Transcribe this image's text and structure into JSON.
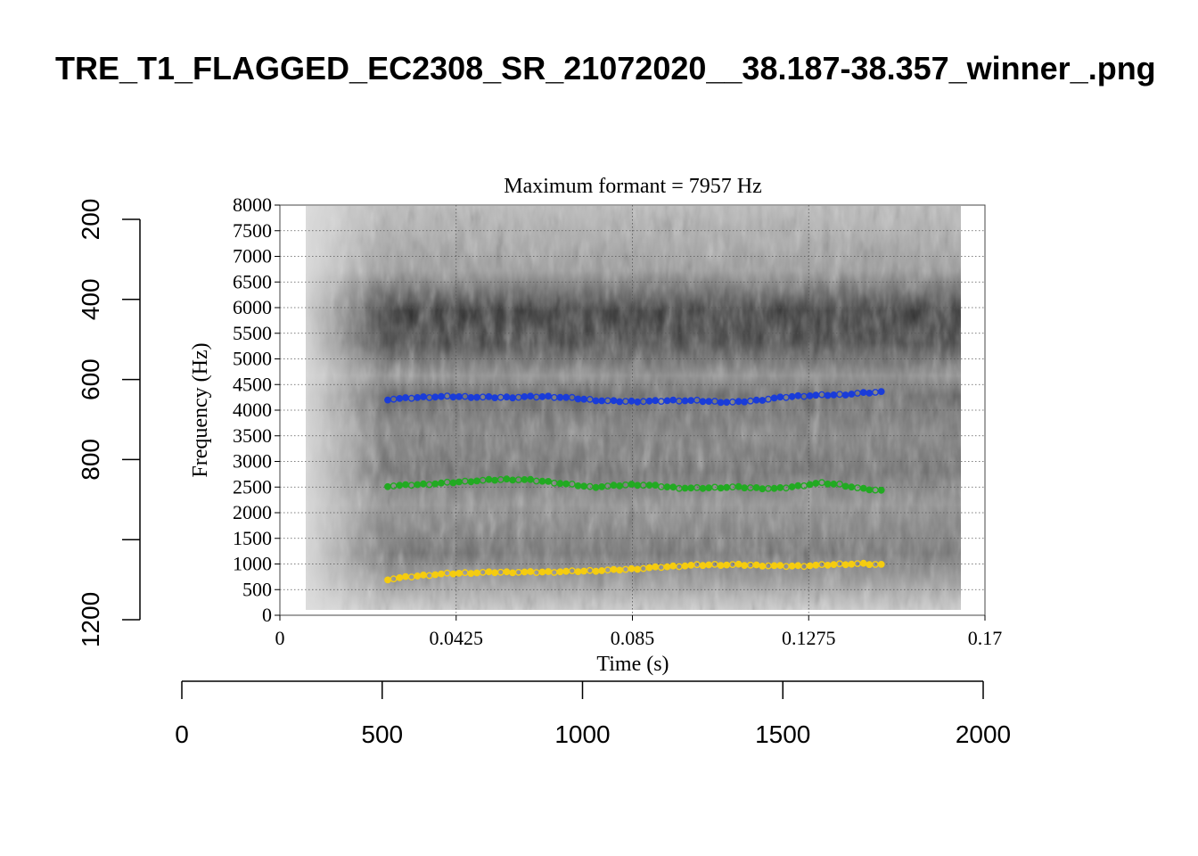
{
  "title": "TRE_T1_FLAGGED_EC2308_SR_21072020__38.187-38.357_winner_.png",
  "outer_axes": {
    "left": {
      "ticks": [
        200,
        400,
        600,
        800,
        1000,
        1200
      ],
      "labels": [
        "200",
        "400",
        "600",
        "800",
        "",
        "1200"
      ],
      "range": [
        200,
        1200
      ],
      "reversed": true
    },
    "bottom": {
      "ticks": [
        0,
        500,
        1000,
        1500,
        2000
      ],
      "labels": [
        "0",
        "500",
        "1000",
        "1500",
        "2000"
      ],
      "range": [
        0,
        2000
      ]
    }
  },
  "chart_data": {
    "type": "scatter",
    "title": "Maximum formant  =  7957 Hz",
    "xlabel": "Time (s)",
    "ylabel": "Frequency (Hz)",
    "xlim": [
      0,
      0.17
    ],
    "ylim": [
      0,
      8000
    ],
    "x_ticks": [
      0,
      0.0425,
      0.085,
      0.1275,
      0.17
    ],
    "x_tick_labels": [
      "0",
      "0.0425",
      "0.085",
      "0.1275",
      "0.17"
    ],
    "y_ticks": [
      0,
      500,
      1000,
      1500,
      2000,
      2500,
      3000,
      3500,
      4000,
      4500,
      5000,
      5500,
      6000,
      6500,
      7000,
      7500,
      8000
    ],
    "y_tick_labels": [
      "0",
      "500",
      "1000",
      "1500",
      "2000",
      "2500",
      "3000",
      "3500",
      "4000",
      "4500",
      "5000",
      "5500",
      "6000",
      "6500",
      "7000",
      "7500",
      "8000"
    ],
    "grid": true,
    "background": "spectrogram (grayscale)",
    "t_start": 0.026,
    "t_end": 0.145,
    "series": [
      {
        "color": "#f5cc10",
        "points": [
          [
            0.026,
            700
          ],
          [
            0.03,
            740
          ],
          [
            0.035,
            780
          ],
          [
            0.04,
            810
          ],
          [
            0.045,
            825
          ],
          [
            0.05,
            835
          ],
          [
            0.055,
            840
          ],
          [
            0.06,
            840
          ],
          [
            0.065,
            845
          ],
          [
            0.07,
            855
          ],
          [
            0.075,
            865
          ],
          [
            0.08,
            880
          ],
          [
            0.085,
            900
          ],
          [
            0.09,
            930
          ],
          [
            0.095,
            955
          ],
          [
            0.1,
            975
          ],
          [
            0.105,
            985
          ],
          [
            0.11,
            985
          ],
          [
            0.115,
            975
          ],
          [
            0.12,
            960
          ],
          [
            0.125,
            960
          ],
          [
            0.13,
            975
          ],
          [
            0.135,
            995
          ],
          [
            0.14,
            1005
          ],
          [
            0.145,
            985
          ]
        ]
      },
      {
        "color": "#22aa22",
        "points": [
          [
            0.026,
            2520
          ],
          [
            0.03,
            2535
          ],
          [
            0.035,
            2555
          ],
          [
            0.04,
            2580
          ],
          [
            0.045,
            2610
          ],
          [
            0.05,
            2635
          ],
          [
            0.055,
            2650
          ],
          [
            0.06,
            2640
          ],
          [
            0.065,
            2600
          ],
          [
            0.07,
            2550
          ],
          [
            0.075,
            2500
          ],
          [
            0.08,
            2520
          ],
          [
            0.085,
            2550
          ],
          [
            0.09,
            2530
          ],
          [
            0.095,
            2490
          ],
          [
            0.1,
            2475
          ],
          [
            0.105,
            2490
          ],
          [
            0.11,
            2500
          ],
          [
            0.115,
            2480
          ],
          [
            0.12,
            2470
          ],
          [
            0.125,
            2520
          ],
          [
            0.13,
            2580
          ],
          [
            0.135,
            2550
          ],
          [
            0.14,
            2470
          ],
          [
            0.145,
            2430
          ]
        ]
      },
      {
        "color": "#1a3cd8",
        "points": [
          [
            0.026,
            4210
          ],
          [
            0.03,
            4230
          ],
          [
            0.035,
            4255
          ],
          [
            0.04,
            4265
          ],
          [
            0.045,
            4260
          ],
          [
            0.05,
            4250
          ],
          [
            0.055,
            4250
          ],
          [
            0.06,
            4260
          ],
          [
            0.065,
            4265
          ],
          [
            0.07,
            4240
          ],
          [
            0.075,
            4200
          ],
          [
            0.08,
            4175
          ],
          [
            0.085,
            4170
          ],
          [
            0.09,
            4175
          ],
          [
            0.095,
            4190
          ],
          [
            0.1,
            4185
          ],
          [
            0.105,
            4165
          ],
          [
            0.11,
            4155
          ],
          [
            0.115,
            4190
          ],
          [
            0.12,
            4240
          ],
          [
            0.125,
            4275
          ],
          [
            0.13,
            4290
          ],
          [
            0.135,
            4300
          ],
          [
            0.14,
            4330
          ],
          [
            0.145,
            4355
          ]
        ]
      }
    ]
  }
}
